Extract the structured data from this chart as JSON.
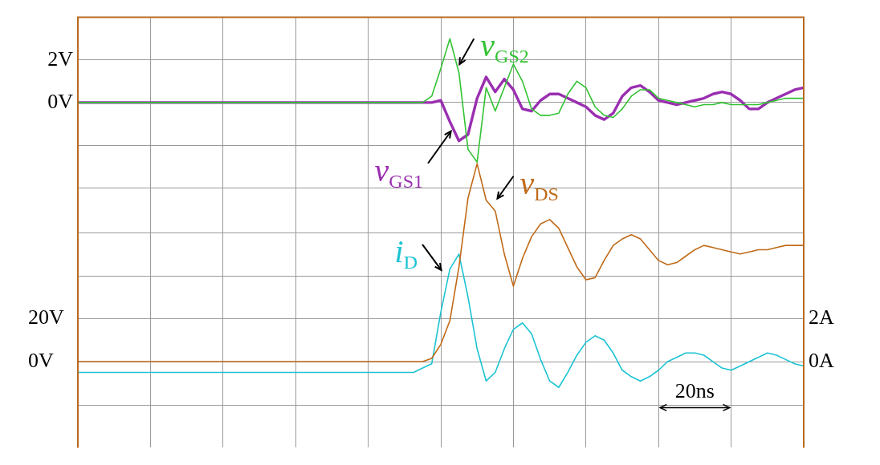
{
  "chart_data": {
    "type": "line",
    "marker": "none",
    "grid": true,
    "tick_labels": "y",
    "categories": [
      null,
      null,
      null,
      null,
      null,
      null,
      null,
      null,
      null,
      null,
      null,
      null,
      null,
      null,
      null,
      null,
      null,
      null,
      null,
      null,
      null,
      null,
      null,
      null,
      null,
      null,
      null,
      null,
      null,
      null,
      null,
      null,
      null,
      null,
      null,
      null,
      null,
      null,
      null,
      null,
      null,
      null,
      null,
      null,
      null,
      null,
      null,
      null,
      null,
      null,
      null,
      null,
      null,
      null,
      null,
      null,
      null,
      null,
      null,
      null,
      null,
      null,
      null,
      null,
      null,
      null,
      null,
      null,
      null,
      null,
      null,
      null,
      null,
      null,
      null,
      null,
      null,
      null,
      null,
      null,
      null
    ],
    "ylim": [
      -16.2,
      4
    ],
    "yticks": [
      {
        "value": -4,
        "label": null
      },
      {
        "value": -2,
        "label": null
      },
      {
        "value": 0,
        "label": "0V"
      },
      {
        "value": 2,
        "label": "2V"
      },
      {
        "value": 4,
        "label": null
      }
    ],
    "y2lim": [
      -40,
      160
    ],
    "y2ticks": [
      {
        "value": 0,
        "label": "0V"
      },
      {
        "value": 20,
        "label": "20V"
      }
    ],
    "y3lim": [
      -4,
      16
    ],
    "y3ticks": [
      {
        "value": 0,
        "label": "0A"
      },
      {
        "value": 2,
        "label": "2A"
      }
    ],
    "annotations": [
      "20ns"
    ],
    "series": [
      {
        "name": "v$_{GS2}$",
        "color": "#33c233",
        "values": [
          0,
          0,
          0,
          0,
          0,
          0,
          0,
          0,
          0,
          0,
          0,
          0,
          0,
          0,
          0,
          0,
          0,
          0,
          0,
          0,
          0,
          0,
          0,
          0,
          0,
          0,
          0,
          0,
          0,
          0,
          0,
          0,
          0,
          0,
          0,
          0,
          0,
          0,
          0,
          0.3,
          1.6,
          3.0,
          1.4,
          -2.2,
          -2.8,
          0.7,
          -0.4,
          0.7,
          1.8,
          1.0,
          -0.3,
          -0.6,
          -0.6,
          -0.5,
          0.4,
          1.0,
          0.7,
          -0.2,
          -0.6,
          -0.7,
          -0.3,
          0.3,
          0.6,
          0.6,
          0.2,
          0.1,
          0,
          -0.1,
          -0.2,
          -0.1,
          -0.1,
          0,
          -0.1,
          -0.1,
          -0.1,
          -0.1,
          0,
          0.1,
          0.2,
          0.2,
          0.2
        ]
      },
      {
        "name": "v$_{GS1}$",
        "color": "#9a2fb0",
        "values": [
          0,
          0,
          0,
          0,
          0,
          0,
          0,
          0,
          0,
          0,
          0,
          0,
          0,
          0,
          0,
          0,
          0,
          0,
          0,
          0,
          0,
          0,
          0,
          0,
          0,
          0,
          0,
          0,
          0,
          0,
          0,
          0,
          0,
          0,
          0,
          0,
          0,
          0,
          0,
          0,
          0.1,
          -0.9,
          -1.8,
          -1.5,
          0.2,
          1.2,
          0.5,
          1.1,
          0.6,
          -0.3,
          -0.4,
          0.1,
          0.4,
          0.4,
          0.2,
          0,
          -0.2,
          -0.6,
          -0.8,
          -0.5,
          0.3,
          0.7,
          0.8,
          0.5,
          0.1,
          0,
          -0.1,
          0,
          0.1,
          0.2,
          0.4,
          0.5,
          0.4,
          0.1,
          -0.3,
          -0.3,
          0,
          0.2,
          0.4,
          0.6,
          0.7
        ]
      },
      {
        "name": "v$_{DS}$",
        "color": "#c06a18",
        "axis": "y2",
        "values": [
          0,
          0,
          0,
          0,
          0,
          0,
          0,
          0,
          0,
          0,
          0,
          0,
          0,
          0,
          0,
          0,
          0,
          0,
          0,
          0,
          0,
          0,
          0,
          0,
          0,
          0,
          0,
          0,
          0,
          0,
          0,
          0,
          0,
          0,
          0,
          0,
          0,
          0,
          0,
          1.5,
          8,
          19,
          44,
          76,
          92,
          75,
          70,
          50,
          35,
          48,
          58,
          64,
          66,
          62,
          53,
          44,
          38,
          39,
          47,
          54,
          57,
          59,
          57,
          52,
          47,
          45,
          46,
          49,
          52,
          54,
          53,
          52,
          51,
          50,
          51,
          52,
          52,
          53,
          54,
          54,
          54
        ]
      },
      {
        "name": "i$_{D}$",
        "color": "#1cc3d3",
        "axis": "y3",
        "values": [
          -0.5,
          -0.5,
          -0.5,
          -0.5,
          -0.5,
          -0.5,
          -0.5,
          -0.5,
          -0.5,
          -0.5,
          -0.5,
          -0.5,
          -0.5,
          -0.5,
          -0.5,
          -0.5,
          -0.5,
          -0.5,
          -0.5,
          -0.5,
          -0.5,
          -0.5,
          -0.5,
          -0.5,
          -0.5,
          -0.5,
          -0.5,
          -0.5,
          -0.5,
          -0.5,
          -0.5,
          -0.5,
          -0.5,
          -0.5,
          -0.5,
          -0.5,
          -0.5,
          -0.5,
          -0.3,
          -0.1,
          2.3,
          4.3,
          5.0,
          3.0,
          0.6,
          -0.9,
          -0.5,
          0.6,
          1.5,
          1.8,
          1.3,
          0.1,
          -0.9,
          -1.2,
          -0.5,
          0.3,
          0.9,
          1.2,
          1.0,
          0.4,
          -0.4,
          -0.7,
          -0.9,
          -0.7,
          -0.4,
          0,
          0.2,
          0.4,
          0.4,
          0.3,
          0,
          -0.3,
          -0.4,
          -0.2,
          0,
          0.2,
          0.4,
          0.3,
          0.1,
          -0.1,
          -0.2
        ]
      }
    ]
  }
}
